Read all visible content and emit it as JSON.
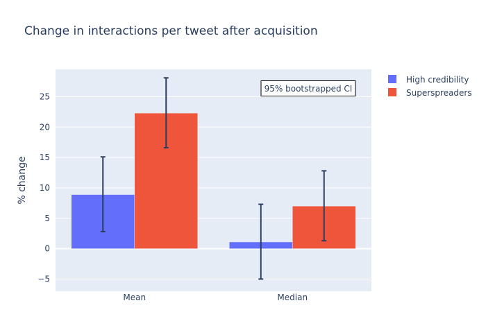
{
  "chart_data": {
    "type": "bar",
    "title": "Change in interactions per tweet after acquisition",
    "xlabel": "",
    "ylabel": "% change",
    "categories": [
      "Mean",
      "Median"
    ],
    "series": [
      {
        "name": "High credibility",
        "color": "#636efa",
        "values": [
          8.9,
          1.1
        ],
        "error_low": [
          2.8,
          -5.0
        ],
        "error_high": [
          15.1,
          7.3
        ]
      },
      {
        "name": "Superspreaders",
        "color": "#ef553b",
        "values": [
          22.3,
          7.0
        ],
        "error_low": [
          16.6,
          1.3
        ],
        "error_high": [
          28.1,
          12.8
        ]
      }
    ],
    "ylim": [
      -7,
      29.5
    ],
    "yticks": [
      -5,
      0,
      5,
      10,
      15,
      20,
      25
    ],
    "ytick_labels": [
      "−5",
      "0",
      "5",
      "10",
      "15",
      "20",
      "25"
    ],
    "annotation": "95% bootstrapped CI",
    "grid": true,
    "legend_position": "top-right",
    "colors": {
      "plot_background": "#e5ecf6",
      "grid": "#ffffff",
      "text": "#2a3f5f",
      "error_bar": "#2a3f5f"
    }
  }
}
